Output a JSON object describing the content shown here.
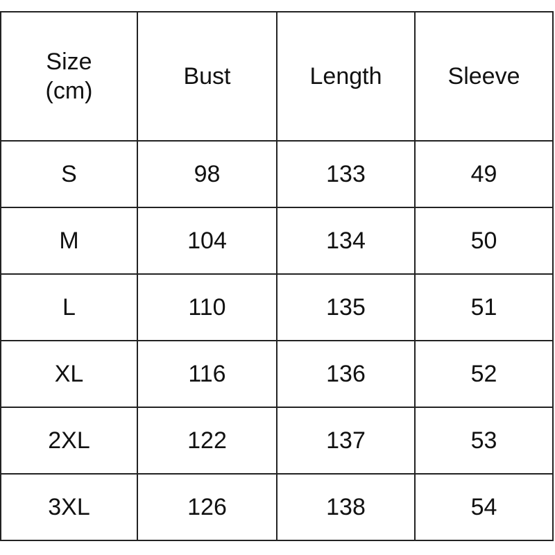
{
  "table": {
    "headers": [
      "Size\n(cm)",
      "Bust",
      "Length",
      "Sleeve"
    ],
    "header_size_line1": "Size",
    "header_size_line2": "(cm)",
    "rows": [
      [
        "S",
        "98",
        "133",
        "49"
      ],
      [
        "M",
        "104",
        "134",
        "50"
      ],
      [
        "L",
        "110",
        "135",
        "51"
      ],
      [
        "XL",
        "116",
        "136",
        "52"
      ],
      [
        "2XL",
        "122",
        "137",
        "53"
      ],
      [
        "3XL",
        "126",
        "138",
        "54"
      ]
    ]
  }
}
